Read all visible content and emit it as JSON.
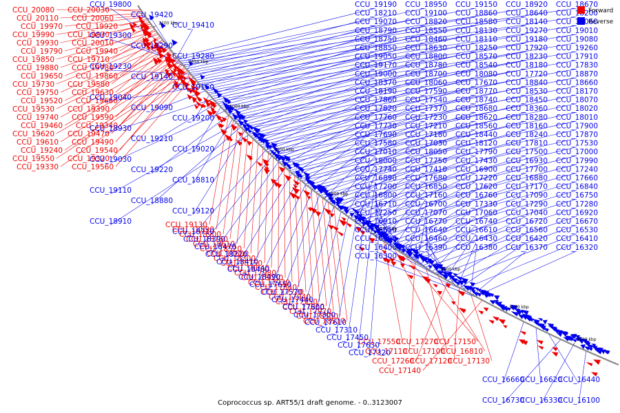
{
  "legend": {
    "forward": {
      "label": "Forward",
      "color": "#ee0000"
    },
    "reverse": {
      "label": "Reverse",
      "color": "#0000ee"
    }
  },
  "backbone_color": "#888888",
  "caption": "Coprococcus sp. ART55/1 draft genome. - 0..3123007",
  "ticks": [
    "2100 kbp",
    "2050 kbp",
    "2000 kbp",
    "1950 kbp",
    "1900 kbp",
    "1850 kbp",
    "1800 kbp",
    "1750 kbp",
    "1700 kbp"
  ],
  "forward_labels": [
    "CCU_20080",
    "CCU_20030",
    "CCU_20110",
    "CCU_20060",
    "CCU_19970",
    "CCU_19920",
    "CCU_19990",
    "CCU_19870",
    "CCU_19930",
    "CCU_20010",
    "CCU_19790",
    "CCU_19940",
    "CCU_19850",
    "CCU_19710",
    "CCU_19880",
    "CCU_19780",
    "CCU_19650",
    "CCU_19860",
    "CCU_19730",
    "CCU_19580",
    "CCU_19750",
    "CCU_19630",
    "CCU_19520",
    "CCU_19660",
    "CCU_19530",
    "CCU_19390",
    "CCU_19740",
    "CCU_19590",
    "CCU_19460",
    "CCU_19340",
    "CCU_19620",
    "CCU_19470",
    "CCU_19610",
    "CCU_19490",
    "CCU_19240",
    "CCU_19540",
    "CCU_19550",
    "CCU_19320",
    "CCU_19330",
    "CCU_19560",
    "CCU_19130",
    "CCU_18890",
    "CCU_18900",
    "CCU_18760",
    "CCU_18610",
    "CCU_18520",
    "CCU_18600",
    "CCU_18300",
    "CCU_18150",
    "CCU_18040",
    "CCU_17980",
    "CCU_18030",
    "CCU_17930",
    "CCU_17840",
    "CCU_17770",
    "CCU_17940",
    "CCU_17950",
    "CCU_17960",
    "CCU_17970",
    "CCU_18500",
    "CCU_18510",
    "CCU_17550",
    "CCU_17270",
    "CCU_17150",
    "CCU_17110",
    "CCU_17100",
    "CCU_16810",
    "CCU_17260",
    "CCU_17120",
    "CCU_17130",
    "CCU_17140"
  ],
  "reverse_labels": [
    "CCU_19800",
    "CCU_19420",
    "CCU_19410",
    "CCU_19300",
    "CCU_19290",
    "CCU_19280",
    "CCU_19230",
    "CCU_19140",
    "CCU_19160",
    "CCU_19040",
    "CCU_19090",
    "CCU_19200",
    "CCU_18930",
    "CCU_19210",
    "CCU_19020",
    "CCU_19030",
    "CCU_19220",
    "CCU_18810",
    "CCU_19110",
    "CCU_18880",
    "CCU_19120",
    "CCU_18910",
    "CCU_18710",
    "CCU_18390",
    "CCU_18470",
    "CCU_18220",
    "CCU_18410",
    "CCU_18480",
    "CCU_18490",
    "CCU_17650",
    "CCU_17570",
    "CCU_17440",
    "CCU_17600",
    "CCU_17300",
    "CCU_17610",
    "CCU_17310",
    "CCU_17450",
    "CCU_17630",
    "CCU_17320",
    "CCU_16660",
    "CCU_16620",
    "CCU_16440",
    "CCU_16730",
    "CCU_16330",
    "CCU_16100",
    "CCU_19190",
    "CCU_18950",
    "CCU_19150",
    "CCU_18920",
    "CCU_18670",
    "CCU_18210",
    "CCU_19100",
    "CCU_18860",
    "CCU_18640",
    "CCU_18200",
    "CCU_19070",
    "CCU_18820",
    "CCU_18580",
    "CCU_18140",
    "CCU_19060",
    "CCU_18790",
    "CCU_18550",
    "CCU_18130",
    "CCU_19270",
    "CCU_19010",
    "CCU_18750",
    "CCU_18460",
    "CCU_18110",
    "CCU_19180",
    "CCU_19080",
    "CCU_18850",
    "CCU_18630",
    "CCU_18250",
    "CCU_17920",
    "CCU_19260",
    "CCU_19050",
    "CCU_18800",
    "CCU_18570",
    "CCU_18230",
    "CCU_17910",
    "CCU_19170",
    "CCU_18780",
    "CCU_18540",
    "CCU_18180",
    "CCU_17830",
    "CCU_19000",
    "CCU_18700",
    "CCU_18080",
    "CCU_17720",
    "CCU_18870",
    "CCU_18370",
    "CCU_18060",
    "CCU_17670",
    "CCU_18840",
    "CCU_18660",
    "CCU_18190",
    "CCU_17590",
    "CCU_18770",
    "CCU_18530",
    "CCU_18170",
    "CCU_17860",
    "CCU_17540",
    "CCU_18740",
    "CCU_18450",
    "CCU_18070",
    "CCU_17820",
    "CCU_17370",
    "CCU_18680",
    "CCU_18360",
    "CCU_18020",
    "CCU_17760",
    "CCU_17230",
    "CCU_18620",
    "CCU_18280",
    "CCU_18010",
    "CCU_17730",
    "CCU_17210",
    "CCU_18560",
    "CCU_18160",
    "CCU_17900",
    "CCU_17690",
    "CCU_17180",
    "CCU_18440",
    "CCU_18240",
    "CCU_17870",
    "CCU_17580",
    "CCU_17030",
    "CCU_18120",
    "CCU_17810",
    "CCU_17530",
    "CCU_17010",
    "CCU_18050",
    "CCU_17790",
    "CCU_17500",
    "CCU_17000",
    "CCU_18000",
    "CCU_17750",
    "CCU_17430",
    "CCU_16930",
    "CCU_17990",
    "CCU_17740",
    "CCU_17410",
    "CCU_16900",
    "CCU_17700",
    "CCU_17240",
    "CCU_16890",
    "CCU_17680",
    "CCU_17220",
    "CCU_16880",
    "CCU_17660",
    "CCU_17200",
    "CCU_16850",
    "CCU_17620",
    "CCU_17170",
    "CCU_16840",
    "CCU_16800",
    "CCU_17160",
    "CCU_16760",
    "CCU_17090",
    "CCU_16750",
    "CCU_16710",
    "CCU_16700",
    "CCU_17330",
    "CCU_17290",
    "CCU_17280",
    "CCU_17250",
    "CCU_17070",
    "CCU_17060",
    "CCU_17040",
    "CCU_16920",
    "CCU_16910",
    "CCU_16770",
    "CCU_16740",
    "CCU_16720",
    "CCU_16670",
    "CCU_16650",
    "CCU_16640",
    "CCU_16610",
    "CCU_16560",
    "CCU_16530",
    "CCU_16500",
    "CCU_16460",
    "CCU_16430",
    "CCU_16420",
    "CCU_16410",
    "CCU_16400",
    "CCU_16390",
    "CCU_16380",
    "CCU_16370",
    "CCU_16320",
    "CCU_16300"
  ]
}
